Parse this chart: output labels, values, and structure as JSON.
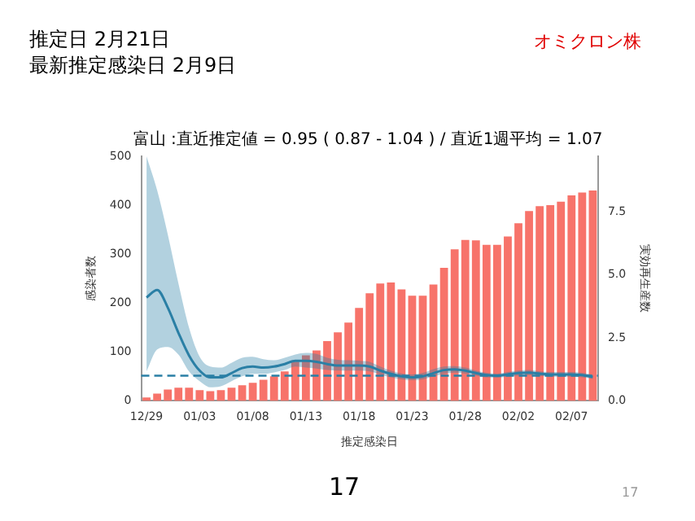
{
  "chart_data": {
    "type": "bar",
    "title": "富山 :直近推定値 = 0.95 ( 0.87 - 1.04 ) / 直近1週平均 = 1.07",
    "xlabel": "推定感染日",
    "ylabel": "感染者数",
    "y2label": "実効再生産数",
    "annotations": [
      "推定日  2月21日",
      "最新推定感染日  2月9日",
      "オミクロン株",
      "17",
      "17"
    ],
    "categories": [
      "12/29",
      null,
      null,
      null,
      null,
      "01/03",
      null,
      null,
      null,
      null,
      "01/08",
      null,
      null,
      null,
      null,
      "01/13",
      null,
      null,
      null,
      null,
      "01/18",
      null,
      null,
      null,
      null,
      "01/23",
      null,
      null,
      null,
      null,
      "01/28",
      null,
      null,
      null,
      null,
      "02/02",
      null,
      null,
      null,
      null,
      "02/07",
      null,
      null
    ],
    "series": [
      {
        "color": "#f7736a",
        "values": [
          7,
          15,
          23,
          27,
          27,
          22,
          20,
          22,
          27,
          32,
          37,
          43,
          50,
          60,
          80,
          93,
          103,
          122,
          140,
          160,
          190,
          220,
          240,
          242,
          228,
          215,
          215,
          238,
          272,
          310,
          329,
          328,
          319,
          319,
          336,
          363,
          388,
          398,
          400,
          407,
          420,
          426,
          430
        ]
      },
      {
        "type": "line",
        "axis": "y2",
        "color": "#2a7fa5",
        "values": [
          4.1,
          4.4,
          3.7,
          2.7,
          1.8,
          1.2,
          0.93,
          0.93,
          1.1,
          1.3,
          1.36,
          1.32,
          1.36,
          1.46,
          1.59,
          1.59,
          1.55,
          1.46,
          1.4,
          1.4,
          1.4,
          1.36,
          1.2,
          1.07,
          0.97,
          0.93,
          0.97,
          1.1,
          1.22,
          1.25,
          1.2,
          1.1,
          1.02,
          1.0,
          1.05,
          1.1,
          1.12,
          1.08,
          1.05,
          1.05,
          1.05,
          1.02,
          0.95
        ],
        "lower": [
          1.17,
          2.04,
          2.14,
          1.84,
          1.17,
          0.78,
          0.54,
          0.58,
          0.78,
          0.97,
          1.07,
          1.07,
          1.13,
          1.22,
          1.36,
          1.32,
          1.28,
          1.22,
          1.2,
          1.2,
          1.2,
          1.17,
          1.05,
          0.93,
          0.85,
          0.82,
          0.85,
          0.97,
          1.07,
          1.12,
          1.08,
          1.0,
          0.93,
          0.92,
          0.96,
          1.0,
          1.02,
          0.99,
          0.96,
          0.96,
          0.96,
          0.93,
          0.87
        ],
        "upper": [
          9.7,
          8.35,
          6.6,
          4.66,
          2.9,
          1.75,
          1.36,
          1.32,
          1.51,
          1.71,
          1.75,
          1.65,
          1.61,
          1.71,
          1.84,
          1.9,
          1.86,
          1.71,
          1.63,
          1.61,
          1.59,
          1.55,
          1.36,
          1.2,
          1.09,
          1.05,
          1.11,
          1.26,
          1.36,
          1.38,
          1.32,
          1.2,
          1.11,
          1.08,
          1.14,
          1.2,
          1.22,
          1.17,
          1.14,
          1.14,
          1.14,
          1.11,
          1.04
        ]
      }
    ],
    "ylim": [
      0,
      500
    ],
    "yticks": [
      0,
      100,
      200,
      300,
      400,
      500
    ],
    "y2lim": [
      0,
      9.7
    ],
    "y2ticks": [
      {
        "value": 0,
        "label": "0.0"
      },
      {
        "value": 2.5,
        "label": "2.5"
      },
      {
        "value": 5,
        "label": "5.0"
      },
      {
        "value": 7.5,
        "label": "7.5"
      }
    ],
    "ref_lines": [
      {
        "axis": "y2",
        "value": 1,
        "color": "#2a7fa5",
        "line_style": "dashed"
      }
    ],
    "grid": false,
    "legend": false
  }
}
